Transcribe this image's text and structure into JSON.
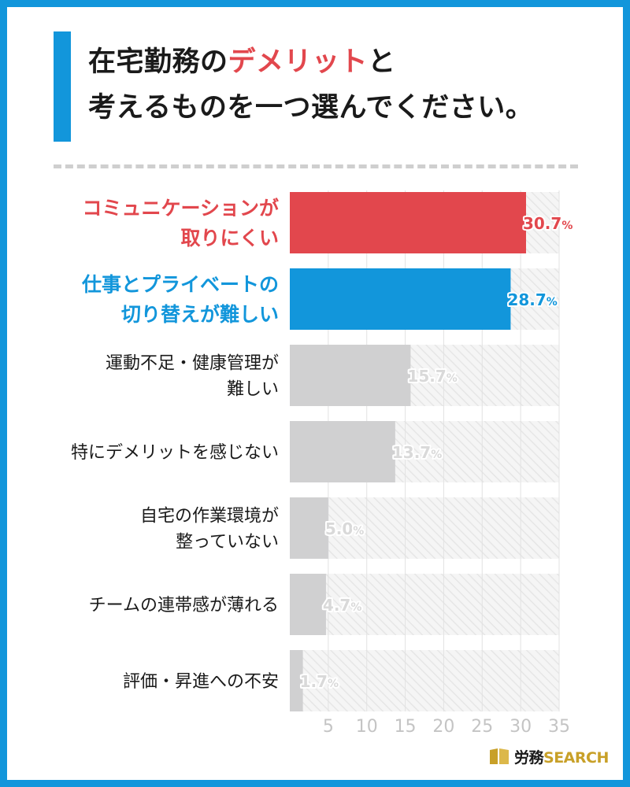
{
  "header": {
    "title_part1": "在宅勤務の",
    "title_accent": "デメリット",
    "title_part2": "と",
    "title_line2": "考えるものを一つ選んでください。"
  },
  "colors": {
    "highlight_red": "#e2474d",
    "highlight_blue": "#1296db",
    "bar_gray": "#d0d0d1",
    "label_gray": "#d9d9d9",
    "text_dark": "#1a1a1a",
    "logo_gold": "#c8a028"
  },
  "chart_data": {
    "type": "bar",
    "orientation": "horizontal",
    "categories": [
      [
        "コミュニケーションが",
        "取りにくい"
      ],
      [
        "仕事とプライベートの",
        "切り替えが難しい"
      ],
      [
        "運動不足・健康管理が",
        "難しい"
      ],
      [
        "特にデメリットを感じない"
      ],
      [
        "自宅の作業環境が",
        "整っていない"
      ],
      [
        "チームの連帯感が薄れる"
      ],
      [
        "評価・昇進への不安"
      ]
    ],
    "values": [
      30.7,
      28.7,
      15.7,
      13.7,
      5.0,
      4.7,
      1.7
    ],
    "value_labels": [
      "30.7",
      "28.7",
      "15.7",
      "13.7",
      "5.0",
      "4.7",
      "1.7"
    ],
    "value_suffix": "%",
    "highlight": [
      "red",
      "blue",
      "none",
      "none",
      "none",
      "none",
      "none"
    ],
    "xlim": [
      0,
      35
    ],
    "xticks": [
      5,
      10,
      15,
      20,
      25,
      30,
      35
    ],
    "xlabel": "",
    "ylabel": "",
    "grid": true
  },
  "logo": {
    "text_jp": "労務",
    "text_en": "SEARCH"
  }
}
